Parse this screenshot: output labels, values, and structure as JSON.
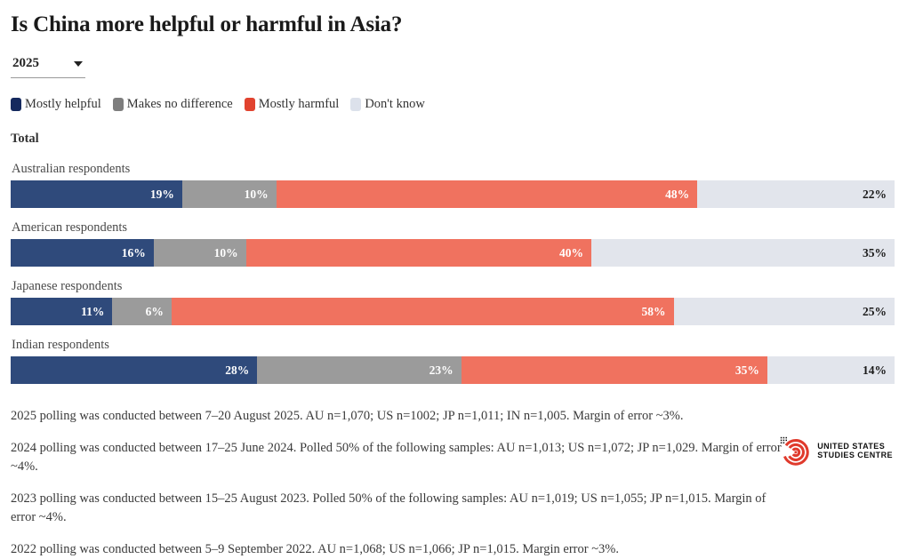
{
  "title": "Is China more helpful or harmful in Asia?",
  "year_dropdown": {
    "value": "2025"
  },
  "legend": [
    {
      "label": "Mostly helpful",
      "color": "#15295E"
    },
    {
      "label": "Makes no difference",
      "color": "#7E7E7E"
    },
    {
      "label": "Mostly harmful",
      "color": "#E1432F"
    },
    {
      "label": "Don't know",
      "color": "#DCE1EB"
    }
  ],
  "section_label": "Total",
  "chart_data": {
    "type": "bar",
    "subtype": "horizontal-stacked",
    "title": "Is China more helpful or harmful in Asia?",
    "categories": [
      "Australian respondents",
      "American respondents",
      "Japanese respondents",
      "Indian respondents"
    ],
    "series": [
      {
        "name": "Mostly helpful",
        "color": "#2F4A7B",
        "label_color": "#ffffff",
        "values": [
          19,
          16,
          11,
          28
        ]
      },
      {
        "name": "Makes no difference",
        "color": "#9B9B9B",
        "label_color": "#ffffff",
        "values": [
          10,
          10,
          6,
          23
        ]
      },
      {
        "name": "Mostly harmful",
        "color": "#F0725F",
        "label_color": "#ffffff",
        "values": [
          48,
          40,
          58,
          35
        ]
      },
      {
        "name": "Don't know",
        "color": "#E2E5EC",
        "label_color": "#1A1A1A",
        "values": [
          22,
          35,
          25,
          14
        ]
      }
    ],
    "value_suffix": "%",
    "xlim": [
      0,
      100
    ],
    "grid": false,
    "legend_position": "top"
  },
  "footnotes": [
    "2025 polling was conducted between 7–20 August 2025. AU n=1,070; US n=1002; JP n=1,011; IN n=1,005. Margin of error ~3%.",
    "2024 polling was conducted between 17–25 June 2024. Polled 50% of the following samples: AU n=1,013; US n=1,072; JP n=1,029. Margin of error ~4%.",
    "2023 polling was conducted between 15–25 August 2023. Polled 50% of the following samples: AU n=1,019; US n=1,055; JP n=1,015. Margin of error ~4%.",
    "2022 polling was conducted between 5–9 September 2022. AU n=1,068; US n=1,066; JP n=1,015. Margin error ~3%."
  ],
  "logo": {
    "line1": "UNITED STATES",
    "line2": "STUDIES CENTRE",
    "mark_color": "#E03A2C"
  }
}
